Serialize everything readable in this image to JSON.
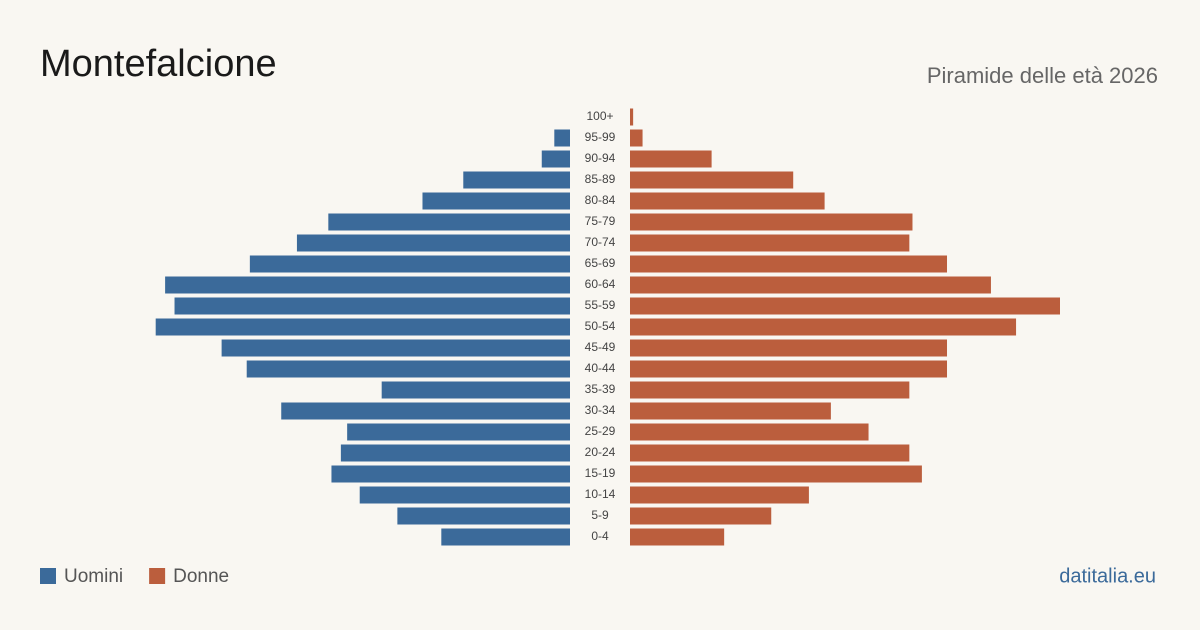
{
  "chart_data": {
    "type": "pyramid",
    "title": "Montefalcione",
    "subtitle": "Piramide delle età 2026",
    "source": "datitalia.eu",
    "categories": [
      "100+",
      "95-99",
      "90-94",
      "85-89",
      "80-84",
      "75-79",
      "70-74",
      "65-69",
      "60-64",
      "55-59",
      "50-54",
      "45-49",
      "40-44",
      "35-39",
      "30-34",
      "25-29",
      "20-24",
      "15-19",
      "10-14",
      "5-9",
      "0-4"
    ],
    "series": [
      {
        "name": "Uomini",
        "color": "#3b6a9a",
        "values": [
          0,
          5,
          9,
          34,
          47,
          77,
          87,
          102,
          129,
          126,
          132,
          111,
          103,
          60,
          92,
          71,
          73,
          76,
          67,
          55,
          41
        ]
      },
      {
        "name": "Donne",
        "color": "#bb5e3d",
        "values": [
          1,
          4,
          26,
          52,
          62,
          90,
          89,
          101,
          115,
          137,
          123,
          101,
          101,
          89,
          64,
          76,
          89,
          93,
          57,
          45,
          30
        ]
      }
    ]
  }
}
